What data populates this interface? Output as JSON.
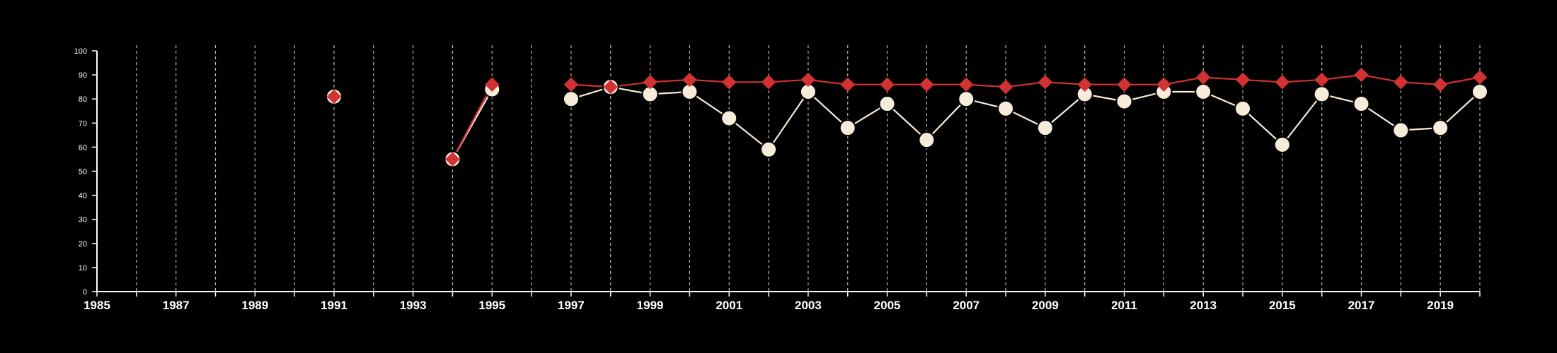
{
  "chart_data": {
    "type": "line",
    "title": "",
    "xlabel": "",
    "ylabel": "",
    "xlim": [
      1985,
      2020
    ],
    "ylim": [
      0,
      100
    ],
    "x_ticks": [
      "1985",
      "1987",
      "1989",
      "1991",
      "1993",
      "1995",
      "1997",
      "1999",
      "2001",
      "2003",
      "2005",
      "2007",
      "2009",
      "2011",
      "2013",
      "2015",
      "2017",
      "2019"
    ],
    "y_ticks": [
      "0",
      "10",
      "20",
      "30",
      "40",
      "50",
      "60",
      "70",
      "80",
      "90",
      "100"
    ],
    "vertical_gridlines": "dashed, every year",
    "colors": {
      "background": "#000000",
      "axis": "#ffffff",
      "grid": "#bbbbbb",
      "series_white": "#f7ebd9",
      "series_red": "#d23232"
    },
    "series": [
      {
        "marker": "circle",
        "color": "#f7ebd9",
        "points": [
          {
            "x": 1991,
            "y": 81
          },
          {
            "x": null,
            "y": null
          },
          {
            "x": 1994,
            "y": 55
          },
          {
            "x": 1995,
            "y": 84
          },
          {
            "x": null,
            "y": null
          },
          {
            "x": 1997,
            "y": 80
          },
          {
            "x": 1998,
            "y": 85
          },
          {
            "x": 1999,
            "y": 82
          },
          {
            "x": 2000,
            "y": 83
          },
          {
            "x": 2001,
            "y": 72
          },
          {
            "x": 2002,
            "y": 59
          },
          {
            "x": 2003,
            "y": 83
          },
          {
            "x": 2004,
            "y": 68
          },
          {
            "x": 2005,
            "y": 78
          },
          {
            "x": 2006,
            "y": 63
          },
          {
            "x": 2007,
            "y": 80
          },
          {
            "x": 2008,
            "y": 76
          },
          {
            "x": 2009,
            "y": 68
          },
          {
            "x": 2010,
            "y": 82
          },
          {
            "x": 2011,
            "y": 79
          },
          {
            "x": 2012,
            "y": 83
          },
          {
            "x": 2013,
            "y": 83
          },
          {
            "x": 2014,
            "y": 76
          },
          {
            "x": 2015,
            "y": 61
          },
          {
            "x": 2016,
            "y": 82
          },
          {
            "x": 2017,
            "y": 78
          },
          {
            "x": 2018,
            "y": 67
          },
          {
            "x": 2019,
            "y": 68
          },
          {
            "x": 2020,
            "y": 83
          }
        ]
      },
      {
        "marker": "diamond",
        "color": "#d23232",
        "points": [
          {
            "x": 1991,
            "y": 81
          },
          {
            "x": null,
            "y": null
          },
          {
            "x": 1994,
            "y": 55
          },
          {
            "x": 1995,
            "y": 86
          },
          {
            "x": null,
            "y": null
          },
          {
            "x": 1997,
            "y": 86
          },
          {
            "x": 1998,
            "y": 85
          },
          {
            "x": 1999,
            "y": 87
          },
          {
            "x": 2000,
            "y": 88
          },
          {
            "x": 2001,
            "y": 87
          },
          {
            "x": 2002,
            "y": 87
          },
          {
            "x": 2003,
            "y": 88
          },
          {
            "x": 2004,
            "y": 86
          },
          {
            "x": 2005,
            "y": 86
          },
          {
            "x": 2006,
            "y": 86
          },
          {
            "x": 2007,
            "y": 86
          },
          {
            "x": 2008,
            "y": 85
          },
          {
            "x": 2009,
            "y": 87
          },
          {
            "x": 2010,
            "y": 86
          },
          {
            "x": 2011,
            "y": 86
          },
          {
            "x": 2012,
            "y": 86
          },
          {
            "x": 2013,
            "y": 89
          },
          {
            "x": 2014,
            "y": 88
          },
          {
            "x": 2015,
            "y": 87
          },
          {
            "x": 2016,
            "y": 88
          },
          {
            "x": 2017,
            "y": 90
          },
          {
            "x": 2018,
            "y": 87
          },
          {
            "x": 2019,
            "y": 86
          },
          {
            "x": 2020,
            "y": 89
          }
        ]
      }
    ]
  }
}
